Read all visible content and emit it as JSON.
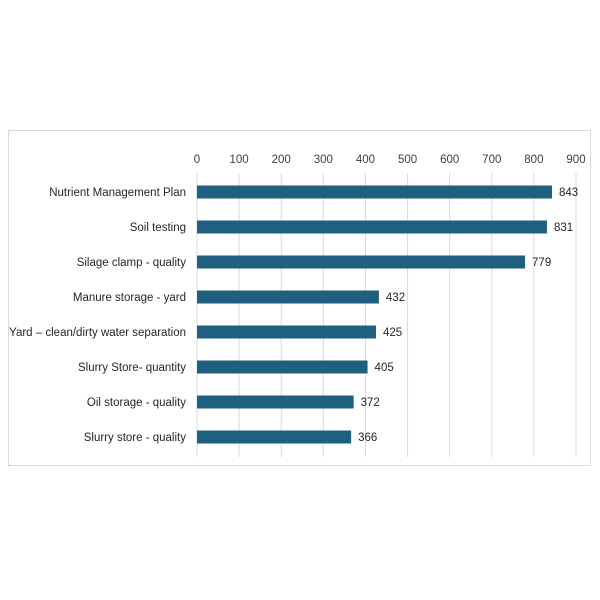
{
  "chart_data": {
    "type": "bar",
    "orientation": "horizontal",
    "categories": [
      "Nutrient Management Plan",
      "Soil testing",
      "Silage clamp - quality",
      "Manure storage - yard",
      "Yard – clean/dirty water separation",
      "Slurry Store- quantity",
      "Oil storage - quality",
      "Slurry store - quality"
    ],
    "values": [
      843,
      831,
      779,
      432,
      425,
      405,
      372,
      366
    ],
    "xlim": [
      0,
      900
    ],
    "xticks": [
      0,
      100,
      200,
      300,
      400,
      500,
      600,
      700,
      800,
      900
    ],
    "x_axis_position": "top",
    "gridlines": true,
    "data_labels": true,
    "legend": "none",
    "title": "",
    "xlabel": "",
    "ylabel": ""
  },
  "colors": {
    "bar": "#1f5f7f",
    "gridline": "#d9d9d9"
  }
}
